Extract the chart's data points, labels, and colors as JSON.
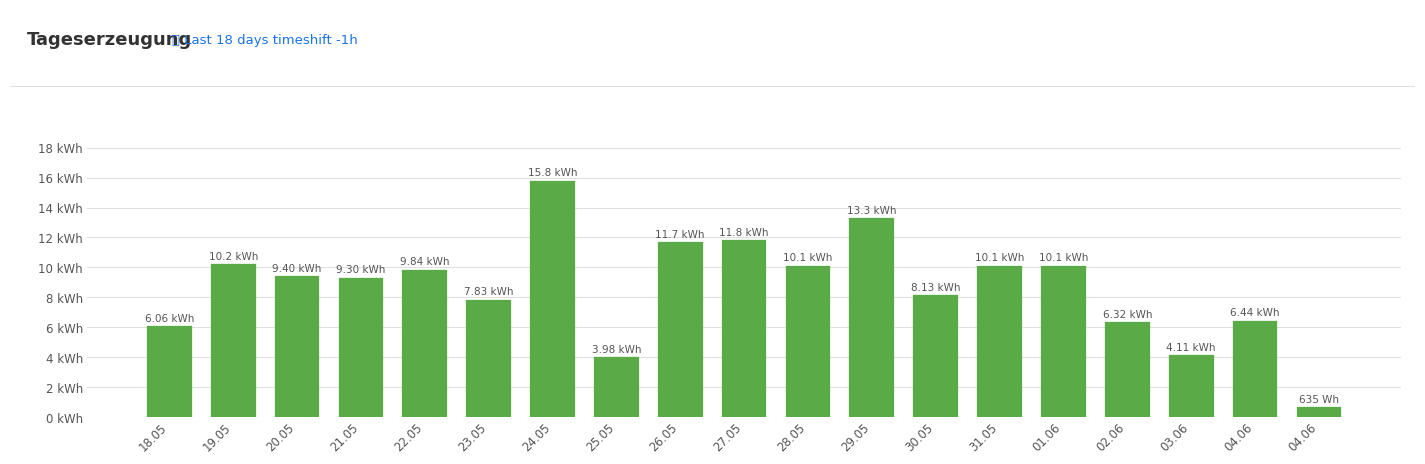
{
  "title": "Tageserzeugung",
  "subtitle": "⏱ Last 18 days timeshift -1h",
  "subtitle_color": "#1a73e8",
  "background_color": "#ffffff",
  "bar_color": "#5aab47",
  "bar_edge_color": "#5aab47",
  "categories": [
    "18.05",
    "19.05",
    "20.05",
    "21.05",
    "22.05",
    "23.05",
    "24.05",
    "25.05",
    "26.05",
    "27.05",
    "28.05",
    "29.05",
    "30.05",
    "31.05",
    "01.06",
    "02.06",
    "03.06",
    "04.06",
    "04.06"
  ],
  "values": [
    6.06,
    10.2,
    9.4,
    9.3,
    9.84,
    7.83,
    15.8,
    3.98,
    11.7,
    11.8,
    10.1,
    13.3,
    8.13,
    10.1,
    10.1,
    6.32,
    4.11,
    6.44,
    0.635
  ],
  "labels": [
    "6.06 kWh",
    "10.2 kWh",
    "9.40 kWh",
    "9.30 kWh",
    "9.84 kWh",
    "7.83 kWh",
    "15.8 kWh",
    "3.98 kWh",
    "11.7 kWh",
    "11.8 kWh",
    "10.1 kWh",
    "13.3 kWh",
    "8.13 kWh",
    "10.1 kWh",
    "10.1 kWh",
    "6.32 kWh",
    "4.11 kWh",
    "6.44 kWh",
    "635 Wh"
  ],
  "yticks": [
    0,
    2,
    4,
    6,
    8,
    10,
    12,
    14,
    16,
    18
  ],
  "ytick_labels": [
    "0 kWh",
    "2 kWh",
    "4 kWh",
    "6 kWh",
    "8 kWh",
    "10 kWh",
    "12 kWh",
    "14 kWh",
    "16 kWh",
    "18 kWh"
  ],
  "ylim": [
    0,
    19.5
  ],
  "grid_color": "#e0e0e0",
  "tick_color": "#555555",
  "label_fontsize": 7.5,
  "axis_fontsize": 8.5,
  "title_fontsize": 13,
  "subtitle_fontsize": 9.5,
  "header_line_color": "#e0e0e0",
  "top_bg_color": "#f5f5f5"
}
